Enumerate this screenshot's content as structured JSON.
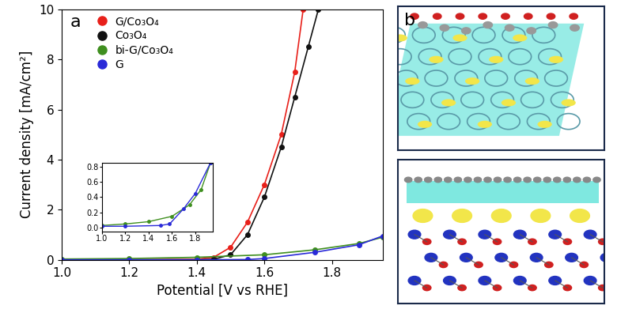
{
  "chart_data": [
    {
      "type": "line",
      "title": "a",
      "x_label": "Potential [V vs RHE]",
      "y_label": "Current density [mA/cm²]",
      "xlim": [
        1.0,
        1.95
      ],
      "ylim": [
        0,
        10
      ],
      "xticks": [
        1.0,
        1.2,
        1.4,
        1.6,
        1.8
      ],
      "yticks": [
        0,
        2,
        4,
        6,
        8,
        10
      ],
      "legend": "upper left",
      "marker": "o",
      "line_style": "solid",
      "series": [
        {
          "name": "G/Co₃O₄",
          "color": "#e8201a",
          "x": [
            1.0,
            1.2,
            1.4,
            1.45,
            1.5,
            1.55,
            1.6,
            1.65,
            1.69,
            1.715
          ],
          "values": [
            0.0,
            0.0,
            0.02,
            0.1,
            0.5,
            1.5,
            3.0,
            5.0,
            7.5,
            10.0
          ]
        },
        {
          "name": "Co₃O₄",
          "color": "#111111",
          "x": [
            1.0,
            1.2,
            1.4,
            1.45,
            1.5,
            1.55,
            1.6,
            1.65,
            1.69,
            1.73,
            1.76
          ],
          "values": [
            0.0,
            0.0,
            0.0,
            0.02,
            0.2,
            1.0,
            2.5,
            4.5,
            6.5,
            8.5,
            10.0
          ]
        },
        {
          "name": "bi-G/Co₃O₄",
          "color": "#3f8f1f",
          "x": [
            1.0,
            1.2,
            1.4,
            1.6,
            1.75,
            1.88,
            1.95
          ],
          "values": [
            0.03,
            0.05,
            0.1,
            0.2,
            0.4,
            0.65,
            0.9
          ]
        },
        {
          "name": "G",
          "color": "#2a2ad8",
          "x": [
            1.0,
            1.2,
            1.4,
            1.55,
            1.6,
            1.75,
            1.88,
            1.95
          ],
          "values": [
            0.0,
            0.0,
            0.0,
            0.01,
            0.05,
            0.3,
            0.6,
            0.95
          ]
        }
      ]
    },
    {
      "type": "line",
      "xlim": [
        1.0,
        1.95
      ],
      "ylim": [
        -0.05,
        0.85
      ],
      "xticks": [
        1.0,
        1.2,
        1.4,
        1.6,
        1.8
      ],
      "yticks": [
        0.0,
        0.2,
        0.4,
        0.6,
        0.8
      ],
      "marker": "o",
      "line_style": "solid",
      "series": [
        {
          "name": "bi-G/Co₃O₄",
          "color": "#3f8f1f",
          "x": [
            1.0,
            1.2,
            1.4,
            1.6,
            1.75,
            1.85,
            1.93
          ],
          "values": [
            0.03,
            0.05,
            0.08,
            0.15,
            0.3,
            0.5,
            0.85
          ]
        },
        {
          "name": "G",
          "color": "#2a2ad8",
          "x": [
            1.0,
            1.2,
            1.5,
            1.58,
            1.7,
            1.8,
            1.93
          ],
          "values": [
            0.02,
            0.02,
            0.03,
            0.05,
            0.25,
            0.45,
            0.85
          ]
        }
      ]
    }
  ],
  "panel_b": {
    "label": "b"
  }
}
